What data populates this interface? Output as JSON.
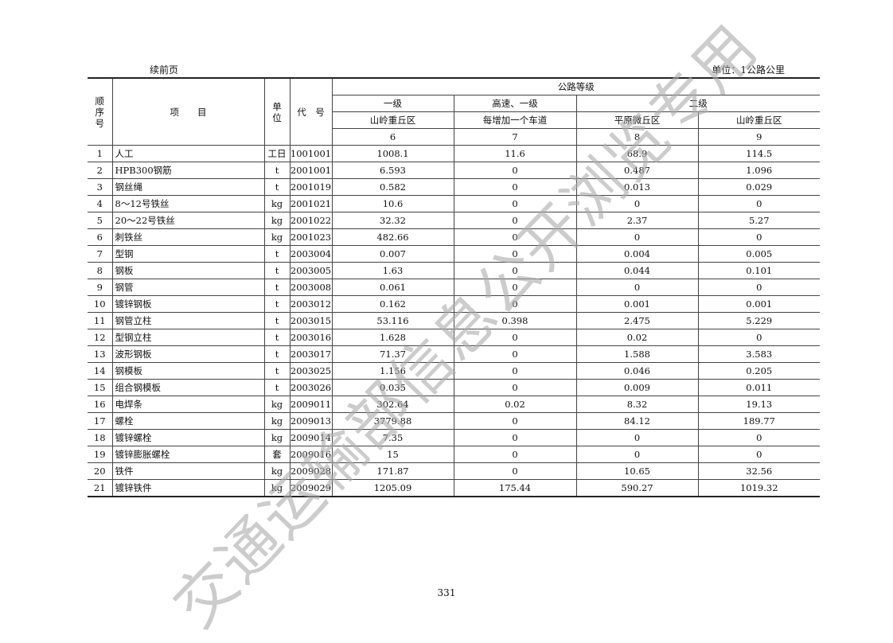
{
  "header": {
    "continued": "续前页",
    "unit": "单位：1公路公里"
  },
  "columns": {
    "seq": "顺序号",
    "item": "项　　目",
    "unit": "单位",
    "code": "代　号",
    "group": "公路等级",
    "grades": [
      "一级",
      "高速、一级",
      "二级"
    ],
    "terrain": [
      "山岭重丘区",
      "每增加一个车道",
      "平原微丘区",
      "山岭重丘区"
    ],
    "numbers": [
      "6",
      "7",
      "8",
      "9"
    ]
  },
  "rows": [
    [
      "1",
      "人工",
      "工日",
      "1001001",
      "1008.1",
      "11.6",
      "68.9",
      "114.5"
    ],
    [
      "2",
      "HPB300钢筋",
      "t",
      "2001001",
      "6.593",
      "0",
      "0.487",
      "1.096"
    ],
    [
      "3",
      "钢丝绳",
      "t",
      "2001019",
      "0.582",
      "0",
      "0.013",
      "0.029"
    ],
    [
      "4",
      "8～12号铁丝",
      "kg",
      "2001021",
      "10.6",
      "0",
      "0",
      "0"
    ],
    [
      "5",
      "20～22号铁丝",
      "kg",
      "2001022",
      "32.32",
      "0",
      "2.37",
      "5.27"
    ],
    [
      "6",
      "刺铁丝",
      "kg",
      "2001023",
      "482.66",
      "0",
      "0",
      "0"
    ],
    [
      "7",
      "型钢",
      "t",
      "2003004",
      "0.007",
      "0",
      "0.004",
      "0.005"
    ],
    [
      "8",
      "钢板",
      "t",
      "2003005",
      "1.63",
      "0",
      "0.044",
      "0.101"
    ],
    [
      "9",
      "钢管",
      "t",
      "2003008",
      "0.061",
      "0",
      "0",
      "0"
    ],
    [
      "10",
      "镀锌钢板",
      "t",
      "2003012",
      "0.162",
      "0",
      "0.001",
      "0.001"
    ],
    [
      "11",
      "钢管立柱",
      "t",
      "2003015",
      "53.116",
      "0.398",
      "2.475",
      "5.229"
    ],
    [
      "12",
      "型钢立柱",
      "t",
      "2003016",
      "1.628",
      "0",
      "0.02",
      "0"
    ],
    [
      "13",
      "波形钢板",
      "t",
      "2003017",
      "71.37",
      "0",
      "1.588",
      "3.583"
    ],
    [
      "14",
      "钢模板",
      "t",
      "2003025",
      "1.156",
      "0",
      "0.046",
      "0.205"
    ],
    [
      "15",
      "组合钢模板",
      "t",
      "2003026",
      "0.035",
      "0",
      "0.009",
      "0.011"
    ],
    [
      "16",
      "电焊条",
      "kg",
      "2009011",
      "302.64",
      "0.02",
      "8.32",
      "19.13"
    ],
    [
      "17",
      "螺栓",
      "kg",
      "2009013",
      "3779.88",
      "0",
      "84.12",
      "189.77"
    ],
    [
      "18",
      "镀锌螺栓",
      "kg",
      "2009014",
      "7.35",
      "0",
      "0",
      "0"
    ],
    [
      "19",
      "镀锌膨胀螺栓",
      "套",
      "2009016",
      "15",
      "0",
      "0",
      "0"
    ],
    [
      "20",
      "铁件",
      "kg",
      "2009028",
      "171.87",
      "0",
      "10.65",
      "32.56"
    ],
    [
      "21",
      "镀锌铁件",
      "kg",
      "2009029",
      "1205.09",
      "175.44",
      "590.27",
      "1019.32"
    ]
  ],
  "page_number": "331",
  "watermark": "交通运输部信息公开浏览专用"
}
